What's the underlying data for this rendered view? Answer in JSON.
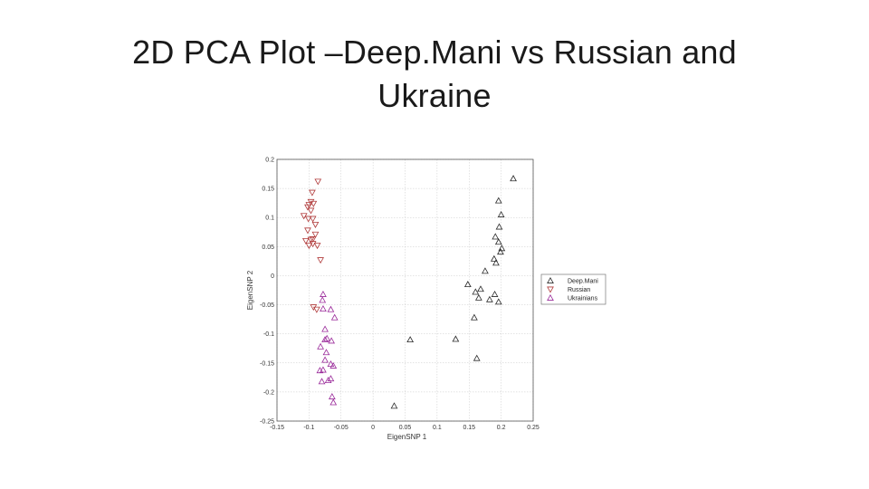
{
  "slide": {
    "title": "2D PCA Plot –Deep.Mani vs Russian and\nUkraine"
  },
  "chart_data": {
    "type": "scatter",
    "title": "",
    "xlabel": "EigenSNP 1",
    "ylabel": "EigenSNP 2",
    "xlim": [
      -0.15,
      0.25
    ],
    "ylim": [
      -0.25,
      0.2
    ],
    "xticks": [
      -0.15,
      -0.1,
      -0.05,
      0,
      0.05,
      0.1,
      0.15,
      0.2,
      0.25
    ],
    "xtick_labels": [
      "-0.15",
      "-0.1",
      "-0.05",
      "0",
      "0.05",
      "0.1",
      "0.15",
      "0.2",
      "0.25"
    ],
    "yticks": [
      -0.25,
      -0.2,
      -0.15,
      -0.1,
      -0.05,
      0,
      0.05,
      0.1,
      0.15,
      0.2
    ],
    "ytick_labels": [
      "-0.25",
      "-0.2",
      "-0.15",
      "-0.1",
      "-0.05",
      "0",
      "0.05",
      "0.1",
      "0.15",
      "0.2"
    ],
    "grid": true,
    "legend_position": "outside-right",
    "series": [
      {
        "name": "Deep.Mani",
        "marker": "triangle-up",
        "color": "#2a2a2a",
        "points": [
          [
            0.219,
            0.167
          ],
          [
            0.196,
            0.129
          ],
          [
            0.2,
            0.105
          ],
          [
            0.197,
            0.084
          ],
          [
            0.191,
            0.067
          ],
          [
            0.196,
            0.058
          ],
          [
            0.201,
            0.047
          ],
          [
            0.199,
            0.041
          ],
          [
            0.189,
            0.029
          ],
          [
            0.192,
            0.022
          ],
          [
            0.175,
            0.008
          ],
          [
            0.148,
            -0.015
          ],
          [
            0.168,
            -0.023
          ],
          [
            0.16,
            -0.028
          ],
          [
            0.19,
            -0.032
          ],
          [
            0.165,
            -0.038
          ],
          [
            0.182,
            -0.041
          ],
          [
            0.196,
            -0.045
          ],
          [
            0.158,
            -0.072
          ],
          [
            0.058,
            -0.11
          ],
          [
            0.129,
            -0.109
          ],
          [
            0.162,
            -0.142
          ],
          [
            0.033,
            -0.224
          ]
        ]
      },
      {
        "name": "Russian",
        "marker": "triangle-down",
        "color": "#b03a3a",
        "points": [
          [
            -0.086,
            0.162
          ],
          [
            -0.095,
            0.143
          ],
          [
            -0.097,
            0.127
          ],
          [
            -0.093,
            0.124
          ],
          [
            -0.1,
            0.122
          ],
          [
            -0.102,
            0.118
          ],
          [
            -0.097,
            0.112
          ],
          [
            -0.108,
            0.103
          ],
          [
            -0.101,
            0.098
          ],
          [
            -0.094,
            0.098
          ],
          [
            -0.09,
            0.088
          ],
          [
            -0.102,
            0.078
          ],
          [
            -0.09,
            0.071
          ],
          [
            -0.094,
            0.063
          ],
          [
            -0.097,
            0.062
          ],
          [
            -0.105,
            0.06
          ],
          [
            -0.094,
            0.055
          ],
          [
            -0.1,
            0.052
          ],
          [
            -0.087,
            0.052
          ],
          [
            -0.082,
            0.027
          ],
          [
            -0.093,
            -0.054
          ],
          [
            -0.088,
            -0.058
          ]
        ]
      },
      {
        "name": "Ukrainians",
        "marker": "triangle-up",
        "color": "#9a2a9a",
        "points": [
          [
            -0.078,
            -0.032
          ],
          [
            -0.079,
            -0.042
          ],
          [
            -0.078,
            -0.057
          ],
          [
            -0.066,
            -0.058
          ],
          [
            -0.06,
            -0.072
          ],
          [
            -0.075,
            -0.092
          ],
          [
            -0.072,
            -0.108
          ],
          [
            -0.065,
            -0.112
          ],
          [
            -0.075,
            -0.11
          ],
          [
            -0.082,
            -0.122
          ],
          [
            -0.073,
            -0.132
          ],
          [
            -0.075,
            -0.145
          ],
          [
            -0.066,
            -0.152
          ],
          [
            -0.062,
            -0.155
          ],
          [
            -0.078,
            -0.162
          ],
          [
            -0.083,
            -0.163
          ],
          [
            -0.066,
            -0.177
          ],
          [
            -0.07,
            -0.18
          ],
          [
            -0.08,
            -0.182
          ],
          [
            -0.064,
            -0.208
          ],
          [
            -0.062,
            -0.218
          ]
        ]
      }
    ]
  }
}
